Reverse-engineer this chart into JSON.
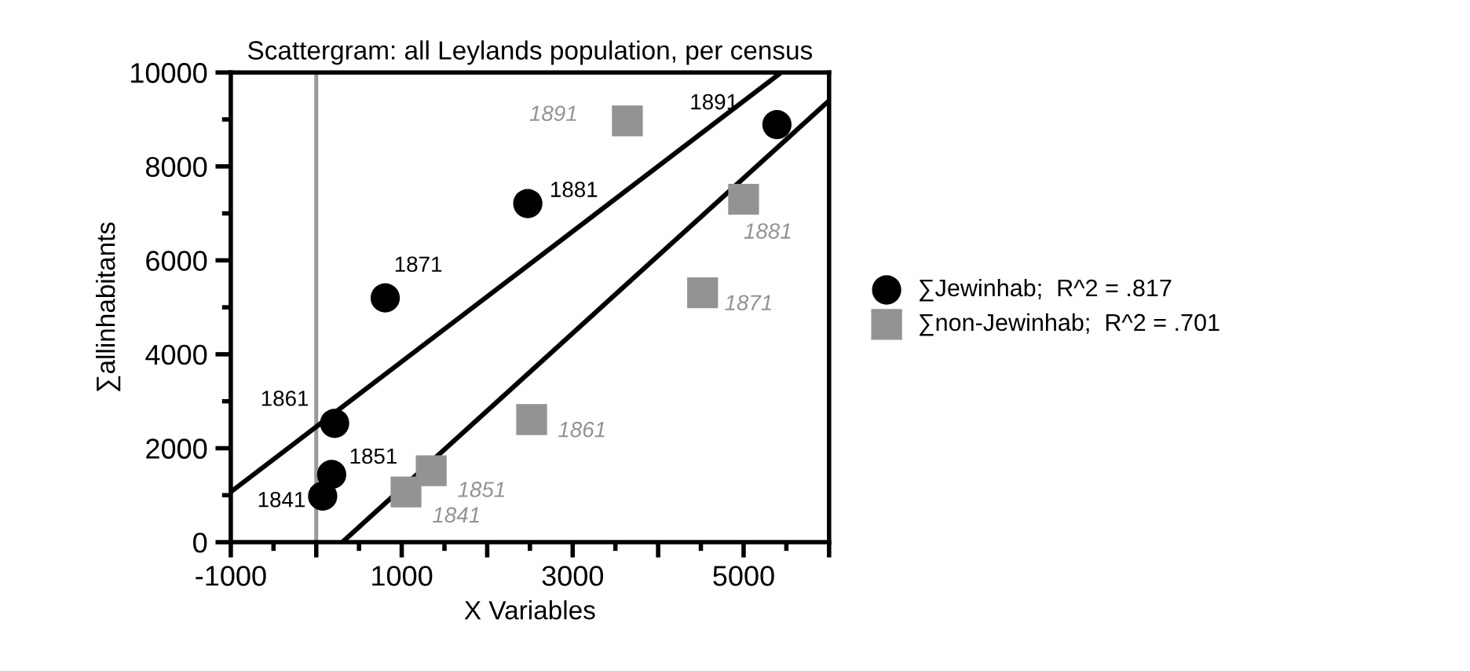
{
  "chart_data": {
    "type": "scatter",
    "title": "Scattergram: all Leylands population, per census",
    "xlabel": "X Variables",
    "ylabel": "∑allinhabitants",
    "xlim": [
      -1000,
      6000
    ],
    "ylim": [
      0,
      10000
    ],
    "xticks": [
      {
        "value": -1000,
        "label": "-1000"
      },
      {
        "value": 0,
        "label": null
      },
      {
        "value": 1000,
        "label": "1000"
      },
      {
        "value": 2000,
        "label": null
      },
      {
        "value": 3000,
        "label": "3000"
      },
      {
        "value": 4000,
        "label": null
      },
      {
        "value": 5000,
        "label": "5000"
      },
      {
        "value": 6000,
        "label": null
      }
    ],
    "yticks": [
      0,
      2000,
      4000,
      6000,
      8000,
      10000
    ],
    "grid": false,
    "legend": "right",
    "ref_lines": [
      {
        "axis": "x",
        "value": 0,
        "label": null,
        "color": "#999999"
      }
    ],
    "series": [
      {
        "name": "∑Jewinhab;  R^2 = .817",
        "color": "#000000",
        "marker": "circle",
        "x": [
          75,
          180,
          215,
          807,
          2475,
          5390
        ],
        "values": [
          980,
          1440,
          2530,
          5200,
          7210,
          8890
        ]
      },
      {
        "name": "∑non-Jewinhab;  R^2 = .701",
        "color": "#939393",
        "marker": "square",
        "x": [
          1050,
          1345,
          2520,
          4520,
          5000,
          3640
        ],
        "values": [
          1070,
          1520,
          2610,
          5310,
          7300,
          8970
        ]
      },
      {
        "type": "line",
        "color": "#000000",
        "x": [
          -1000,
          5440
        ],
        "values": [
          1070,
          10000
        ]
      },
      {
        "type": "line",
        "color": "#000000",
        "x": [
          305,
          6000
        ],
        "values": [
          0,
          9400
        ]
      }
    ],
    "annotations": [
      {
        "text": "1841",
        "x": 75,
        "y": 980
      },
      {
        "text": "1851",
        "x": 180,
        "y": 1440
      },
      {
        "text": "1861",
        "x": 215,
        "y": 2530
      },
      {
        "text": "1871",
        "x": 807,
        "y": 5200
      },
      {
        "text": "1881",
        "x": 2475,
        "y": 7210
      },
      {
        "text": "1891",
        "x": 5390,
        "y": 8890
      },
      {
        "text": "1841",
        "x": 1050,
        "y": 1070
      },
      {
        "text": "1851",
        "x": 1345,
        "y": 1520
      },
      {
        "text": "1861",
        "x": 2520,
        "y": 2610
      },
      {
        "text": "1871",
        "x": 4520,
        "y": 5310
      },
      {
        "text": "1881",
        "x": 5000,
        "y": 7300
      },
      {
        "text": "1891",
        "x": 3640,
        "y": 8970
      }
    ]
  }
}
